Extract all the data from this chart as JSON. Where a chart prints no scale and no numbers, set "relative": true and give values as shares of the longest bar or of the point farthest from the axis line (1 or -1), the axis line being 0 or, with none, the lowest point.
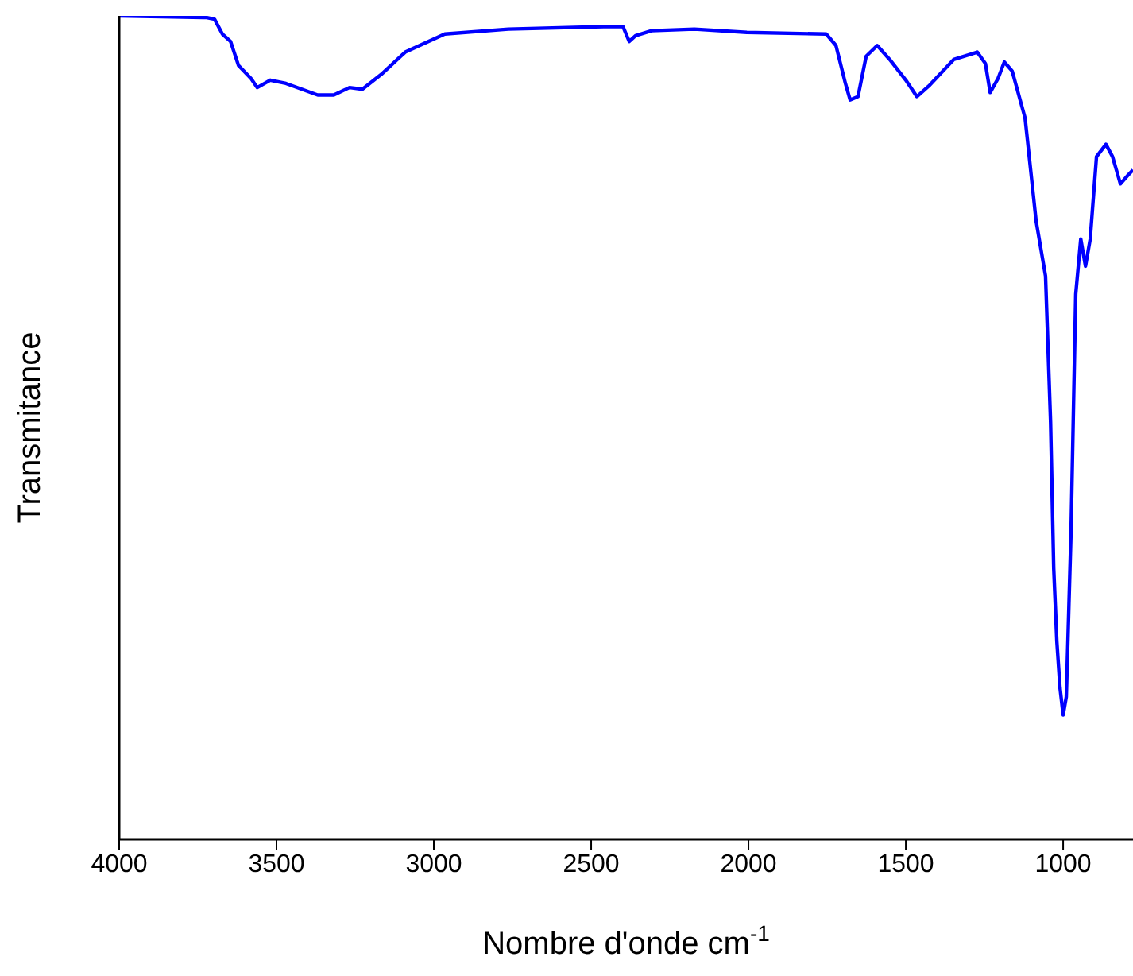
{
  "chart_data": {
    "type": "line",
    "xlabel": "Nombre d'onde cm$^{-1}$",
    "ylabel": "Transmitance",
    "relative": true,
    "xlim": [
      4000,
      778
    ],
    "xticks": [
      4000,
      3500,
      3000,
      2500,
      2000,
      1500,
      1000
    ],
    "grid": false,
    "legend": false,
    "marker": "none",
    "line_style": "solid",
    "series": [
      {
        "color": "#0000ff",
        "x": [
          4000,
          3722,
          3697,
          3672,
          3646,
          3621,
          3581,
          3561,
          3520,
          3470,
          3369,
          3318,
          3268,
          3227,
          3167,
          3091,
          2965,
          2763,
          2460,
          2399,
          2379,
          2359,
          2308,
          2172,
          2005,
          1753,
          1722,
          1692,
          1677,
          1652,
          1626,
          1591,
          1551,
          1500,
          1465,
          1424,
          1348,
          1273,
          1247,
          1232,
          1207,
          1187,
          1162,
          1121,
          1086,
          1056,
          1040,
          1030,
          1020,
          1010,
          1000,
          990,
          975,
          960,
          944,
          929,
          914,
          894,
          864,
          843,
          818,
          793,
          778
        ],
        "values": [
          1.0,
          0.998,
          0.996,
          0.978,
          0.969,
          0.94,
          0.924,
          0.913,
          0.922,
          0.918,
          0.904,
          0.904,
          0.913,
          0.911,
          0.929,
          0.956,
          0.978,
          0.984,
          0.987,
          0.987,
          0.969,
          0.976,
          0.982,
          0.984,
          0.98,
          0.978,
          0.964,
          0.918,
          0.898,
          0.902,
          0.951,
          0.964,
          0.947,
          0.922,
          0.902,
          0.916,
          0.947,
          0.956,
          0.942,
          0.907,
          0.924,
          0.944,
          0.933,
          0.876,
          0.751,
          0.684,
          0.507,
          0.329,
          0.24,
          0.184,
          0.151,
          0.173,
          0.373,
          0.662,
          0.729,
          0.696,
          0.729,
          0.829,
          0.844,
          0.829,
          0.796,
          0.807,
          0.813
        ]
      }
    ]
  }
}
